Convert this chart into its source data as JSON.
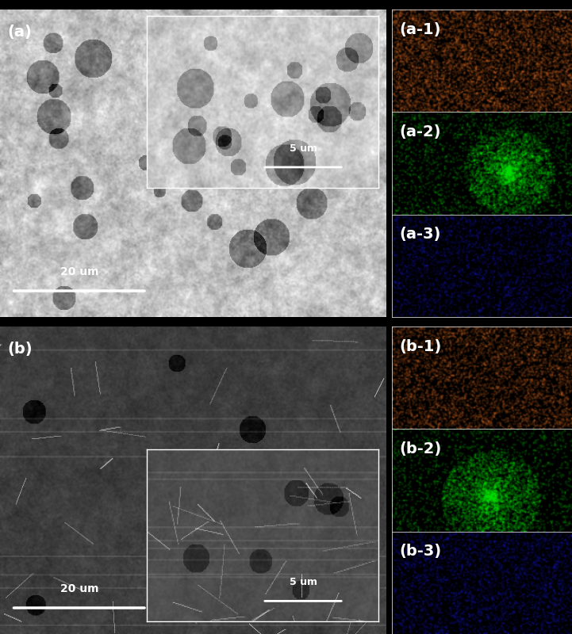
{
  "figure_width": 7.21,
  "figure_height": 8.0,
  "dpi": 100,
  "background_color": "#000000",
  "panel_labels": {
    "a": "(a)",
    "b": "(b)",
    "a1": "(a-1)",
    "a2": "(a-2)",
    "a3": "(a-3)",
    "b1": "(b-1)",
    "b2": "(b-2)",
    "b3": "(b-3)"
  },
  "scalebar_20um": "20 um",
  "scalebar_5um": "5 um",
  "label_fontsize": 14,
  "label_fontweight": "bold",
  "label_color": "white",
  "sem_a_color_mean": 100,
  "sem_b_color_mean": 80,
  "orange_color": [
    200,
    100,
    30
  ],
  "green_color": [
    0,
    200,
    0
  ],
  "blue_color": [
    10,
    10,
    180
  ],
  "seed_a": 42,
  "seed_b": 123
}
